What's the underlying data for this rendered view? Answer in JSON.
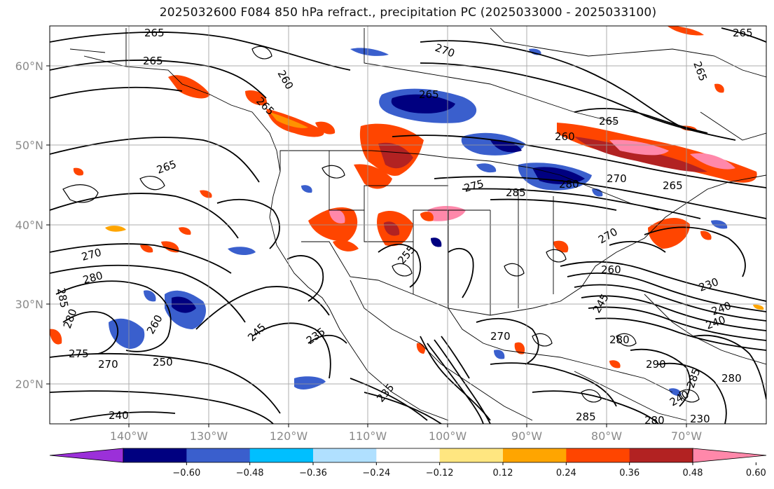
{
  "title": "2025032600 F084 850 hPa refract., precipitation PC (2025033000 - 2025033100)",
  "lat_labels": [
    "60°N",
    "50°N",
    "40°N",
    "30°N",
    "20°N"
  ],
  "lon_labels": [
    "140°W",
    "130°W",
    "120°W",
    "110°W",
    "100°W",
    "90°W",
    "80°W",
    "70°W"
  ],
  "colorbar": {
    "colors": [
      "#9b30d9",
      "#000080",
      "#3a5fcd",
      "#00bfff",
      "#b0e0ff",
      "#ffffff",
      "#ffe680",
      "#ffa500",
      "#ff4500",
      "#b22222",
      "#ff88aa"
    ],
    "labels": [
      "−0.60",
      "−0.48",
      "−0.36",
      "−0.24",
      "−0.12",
      "0.12",
      "0.24",
      "0.36",
      "0.48",
      "0.60"
    ]
  },
  "contour_labels": [
    "265",
    "265",
    "265",
    "265",
    "270",
    "260",
    "265",
    "265",
    "265",
    "260",
    "265",
    "275",
    "285",
    "280",
    "270",
    "265",
    "270",
    "280",
    "285",
    "280",
    "275",
    "270",
    "260",
    "250",
    "245",
    "235",
    "255",
    "240",
    "270",
    "270",
    "260",
    "245",
    "230",
    "240",
    "240",
    "280",
    "290",
    "285",
    "280",
    "280",
    "285",
    "235",
    "230",
    "240"
  ]
}
